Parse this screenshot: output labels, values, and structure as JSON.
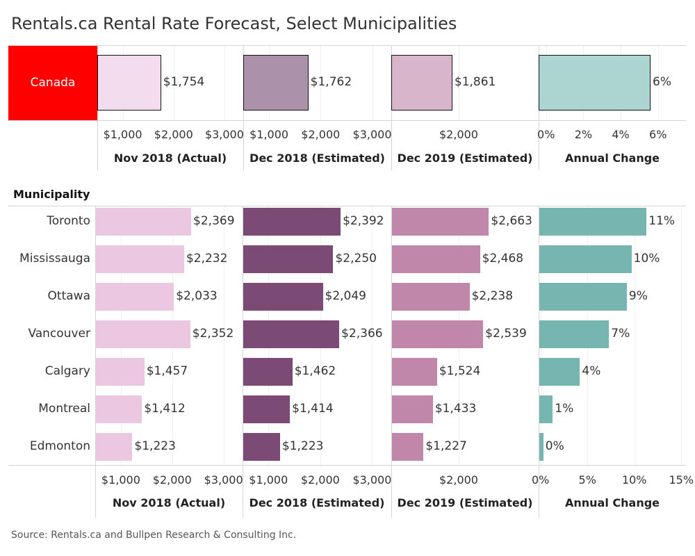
{
  "title": "Rentals.ca Rental Rate Forecast, Select Municipalities",
  "source": "Source: Rentals.ca and Bullpen Research & Consulting Inc.",
  "chart_data": {
    "type": "bar",
    "orientation": "horizontal",
    "row_header": "Municipality",
    "summary": {
      "name": "Canada",
      "highlight_color": "#ff0000",
      "values": [
        1754,
        1762,
        1861,
        5.6
      ],
      "labels": [
        "$1,754",
        "$1,762",
        "$1,861",
        "6%"
      ]
    },
    "columns": [
      {
        "title": "Nov 2018 (Actual)",
        "color": "#ebc7e1",
        "summary_color": "#f3dcee",
        "xlim": [
          500,
          3370
        ],
        "ticks": [
          1000,
          2000,
          3000
        ],
        "tick_labels": [
          "$1,000",
          "$2,000",
          "$3,000"
        ],
        "summary_ticks": [
          1000,
          2000,
          3000
        ],
        "summary_tick_labels": [
          "$1,000",
          "$2,000",
          "$3,000"
        ]
      },
      {
        "title": "Dec 2018 (Estimated)",
        "color": "#7b4b75",
        "summary_color": "#ab91aa",
        "xlim": [
          500,
          3370
        ],
        "ticks": [
          1000,
          2000,
          3000
        ],
        "tick_labels": [
          "$1,000",
          "$2,000",
          "$3,000"
        ],
        "summary_ticks": [
          1000,
          2000,
          3000
        ],
        "summary_tick_labels": [
          "$1,000",
          "$2,000",
          "$3,000"
        ]
      },
      {
        "title": "Dec 2019 (Estimated)",
        "color": "#c087aa",
        "summary_color": "#d8b5ca",
        "xlim": [
          519,
          3756
        ],
        "ticks": [
          2000
        ],
        "tick_labels": [
          "$2,000"
        ],
        "summary_ticks": [
          2000
        ],
        "summary_tick_labels": [
          "$2,000"
        ]
      },
      {
        "title": "Annual Change",
        "color": "#76b5b0",
        "summary_color": "#acd4d1",
        "xlim": [
          -0.2,
          15.5
        ],
        "ticks": [
          0,
          5,
          10,
          15
        ],
        "tick_labels": [
          "0%",
          "5%",
          "10%",
          "15%"
        ],
        "summary_xlim": [
          -0.4,
          7.5
        ],
        "summary_ticks": [
          0,
          2,
          4,
          6
        ],
        "summary_tick_labels": [
          "0%",
          "2%",
          "4%",
          "6%"
        ]
      }
    ],
    "rows": [
      {
        "name": "Toronto",
        "values": [
          2369,
          2392,
          2663,
          11.3
        ],
        "labels": [
          "$2,369",
          "$2,392",
          "$2,663",
          "11%"
        ]
      },
      {
        "name": "Mississauga",
        "values": [
          2232,
          2250,
          2468,
          9.7
        ],
        "labels": [
          "$2,232",
          "$2,250",
          "$2,468",
          "10%"
        ]
      },
      {
        "name": "Ottawa",
        "values": [
          2033,
          2049,
          2238,
          9.2
        ],
        "labels": [
          "$2,033",
          "$2,049",
          "$2,238",
          "9%"
        ]
      },
      {
        "name": "Vancouver",
        "values": [
          2352,
          2366,
          2539,
          7.3
        ],
        "labels": [
          "$2,352",
          "$2,366",
          "$2,539",
          "7%"
        ]
      },
      {
        "name": "Calgary",
        "values": [
          1457,
          1462,
          1524,
          4.2
        ],
        "labels": [
          "$1,457",
          "$1,462",
          "$1,524",
          "4%"
        ]
      },
      {
        "name": "Montreal",
        "values": [
          1412,
          1414,
          1433,
          1.3
        ],
        "labels": [
          "$1,412",
          "$1,414",
          "$1,433",
          "1%"
        ]
      },
      {
        "name": "Edmonton",
        "values": [
          1223,
          1223,
          1227,
          0.3
        ],
        "labels": [
          "$1,223",
          "$1,223",
          "$1,227",
          "0%"
        ]
      }
    ]
  }
}
